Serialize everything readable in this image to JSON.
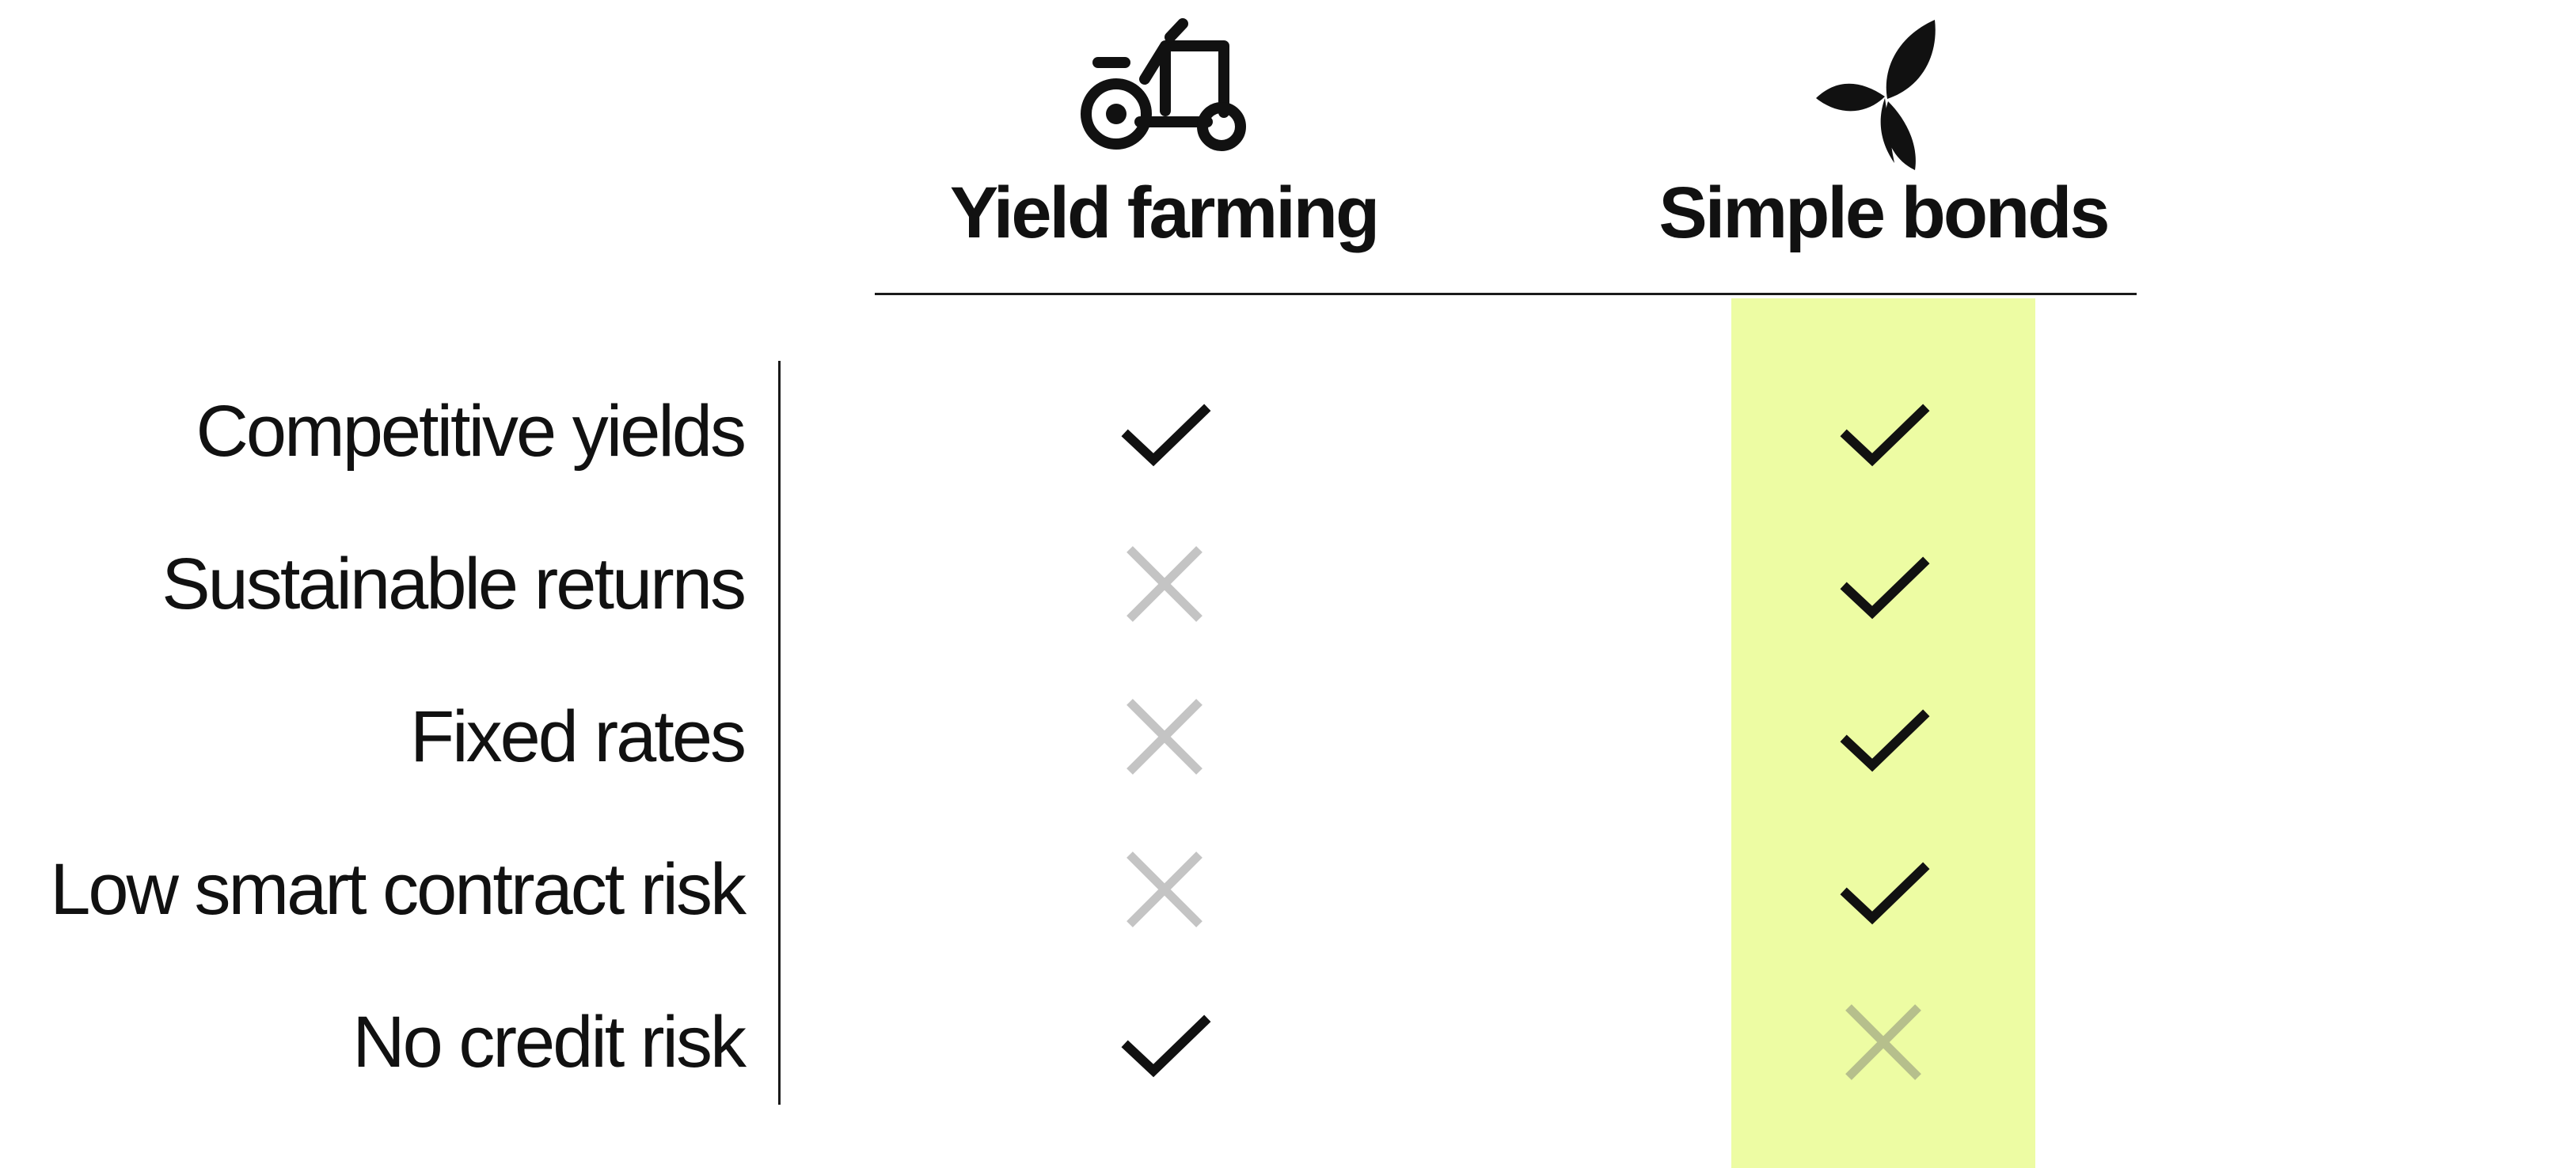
{
  "colors": {
    "highlight": "#edfca3",
    "check": "#111111",
    "cross": "#c4c4c4",
    "cross_on_highlight": "#b6bf8c",
    "divider": "#1a1a1a"
  },
  "columns": [
    {
      "title": "Yield farming",
      "icon": "tractor-icon"
    },
    {
      "title": "Simple bonds",
      "icon": "leaf-icon"
    }
  ],
  "rows": [
    {
      "label": "Competitive yields",
      "yield_farming": "check",
      "simple_bonds": "check"
    },
    {
      "label": "Sustainable returns",
      "yield_farming": "cross",
      "simple_bonds": "check"
    },
    {
      "label": "Fixed rates",
      "yield_farming": "cross",
      "simple_bonds": "check"
    },
    {
      "label": "Low smart contract risk",
      "yield_farming": "cross",
      "simple_bonds": "check"
    },
    {
      "label": "No credit risk",
      "yield_farming": "check",
      "simple_bonds": "cross"
    }
  ]
}
